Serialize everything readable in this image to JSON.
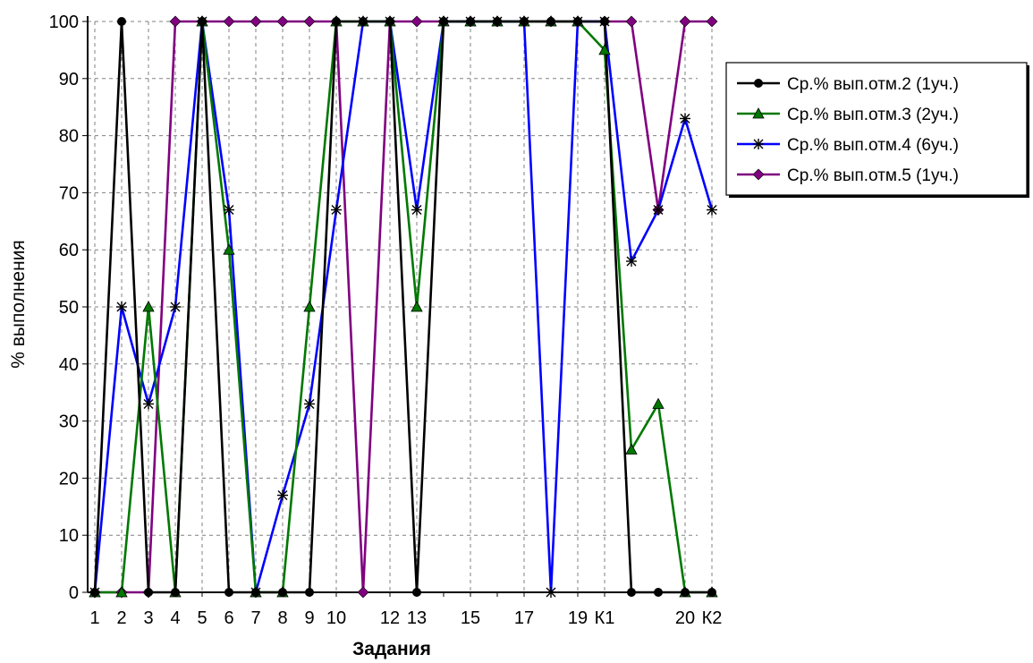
{
  "chart_data": {
    "type": "line",
    "title": "",
    "xlabel": "Задания",
    "ylabel": "% выполнения",
    "ylim": [
      0,
      100
    ],
    "yticks": [
      0,
      10,
      20,
      30,
      40,
      50,
      60,
      70,
      80,
      90,
      100
    ],
    "grid": true,
    "legend_position": "right",
    "categories": [
      "1",
      "2",
      "3",
      "4",
      "5",
      "6",
      "7",
      "8",
      "9",
      "10",
      "11",
      "12",
      "13",
      "14",
      "15",
      "16",
      "17",
      "18",
      "19",
      "К1",
      "",
      "",
      "20",
      "К2"
    ],
    "x_tick_labels": [
      {
        "index": 0,
        "label": "1"
      },
      {
        "index": 1,
        "label": "2"
      },
      {
        "index": 2,
        "label": "3"
      },
      {
        "index": 3,
        "label": "4"
      },
      {
        "index": 4,
        "label": "5"
      },
      {
        "index": 5,
        "label": "6"
      },
      {
        "index": 6,
        "label": "7"
      },
      {
        "index": 7,
        "label": "8"
      },
      {
        "index": 8,
        "label": "9"
      },
      {
        "index": 9,
        "label": "10"
      },
      {
        "index": 11,
        "label": "12"
      },
      {
        "index": 12,
        "label": "13"
      },
      {
        "index": 14,
        "label": "15"
      },
      {
        "index": 16,
        "label": "17"
      },
      {
        "index": 18,
        "label": "19"
      },
      {
        "index": 19,
        "label": "К1"
      },
      {
        "index": 22,
        "label": "20"
      },
      {
        "index": 23,
        "label": "К2"
      }
    ],
    "series": [
      {
        "name": "Ср.% вып.отм.2 (1уч.)",
        "color": "#000000",
        "marker": "circle",
        "values": [
          0,
          100,
          0,
          0,
          100,
          0,
          0,
          0,
          0,
          100,
          100,
          100,
          0,
          100,
          100,
          100,
          100,
          100,
          100,
          100,
          0,
          0,
          0,
          0
        ]
      },
      {
        "name": "Ср.% вып.отм.3 (2уч.)",
        "color": "#007800",
        "marker": "triangle",
        "values": [
          0,
          0,
          50,
          0,
          100,
          60,
          0,
          0,
          50,
          100,
          100,
          100,
          50,
          100,
          100,
          100,
          100,
          100,
          100,
          95,
          25,
          33,
          0,
          0
        ]
      },
      {
        "name": "Ср.% вып.отм.4 (6уч.)",
        "color": "#0000ff",
        "marker": "star",
        "values": [
          0,
          50,
          33,
          50,
          100,
          67,
          0,
          17,
          33,
          67,
          100,
          100,
          67,
          100,
          100,
          100,
          100,
          0,
          100,
          100,
          58,
          67,
          83,
          67
        ]
      },
      {
        "name": "Ср.% вып.отм.5 (1уч.)",
        "color": "#800080",
        "marker": "diamond",
        "values": [
          0,
          0,
          0,
          100,
          100,
          100,
          100,
          100,
          100,
          100,
          0,
          100,
          100,
          100,
          100,
          100,
          100,
          100,
          100,
          100,
          100,
          67,
          100,
          100
        ]
      }
    ]
  }
}
